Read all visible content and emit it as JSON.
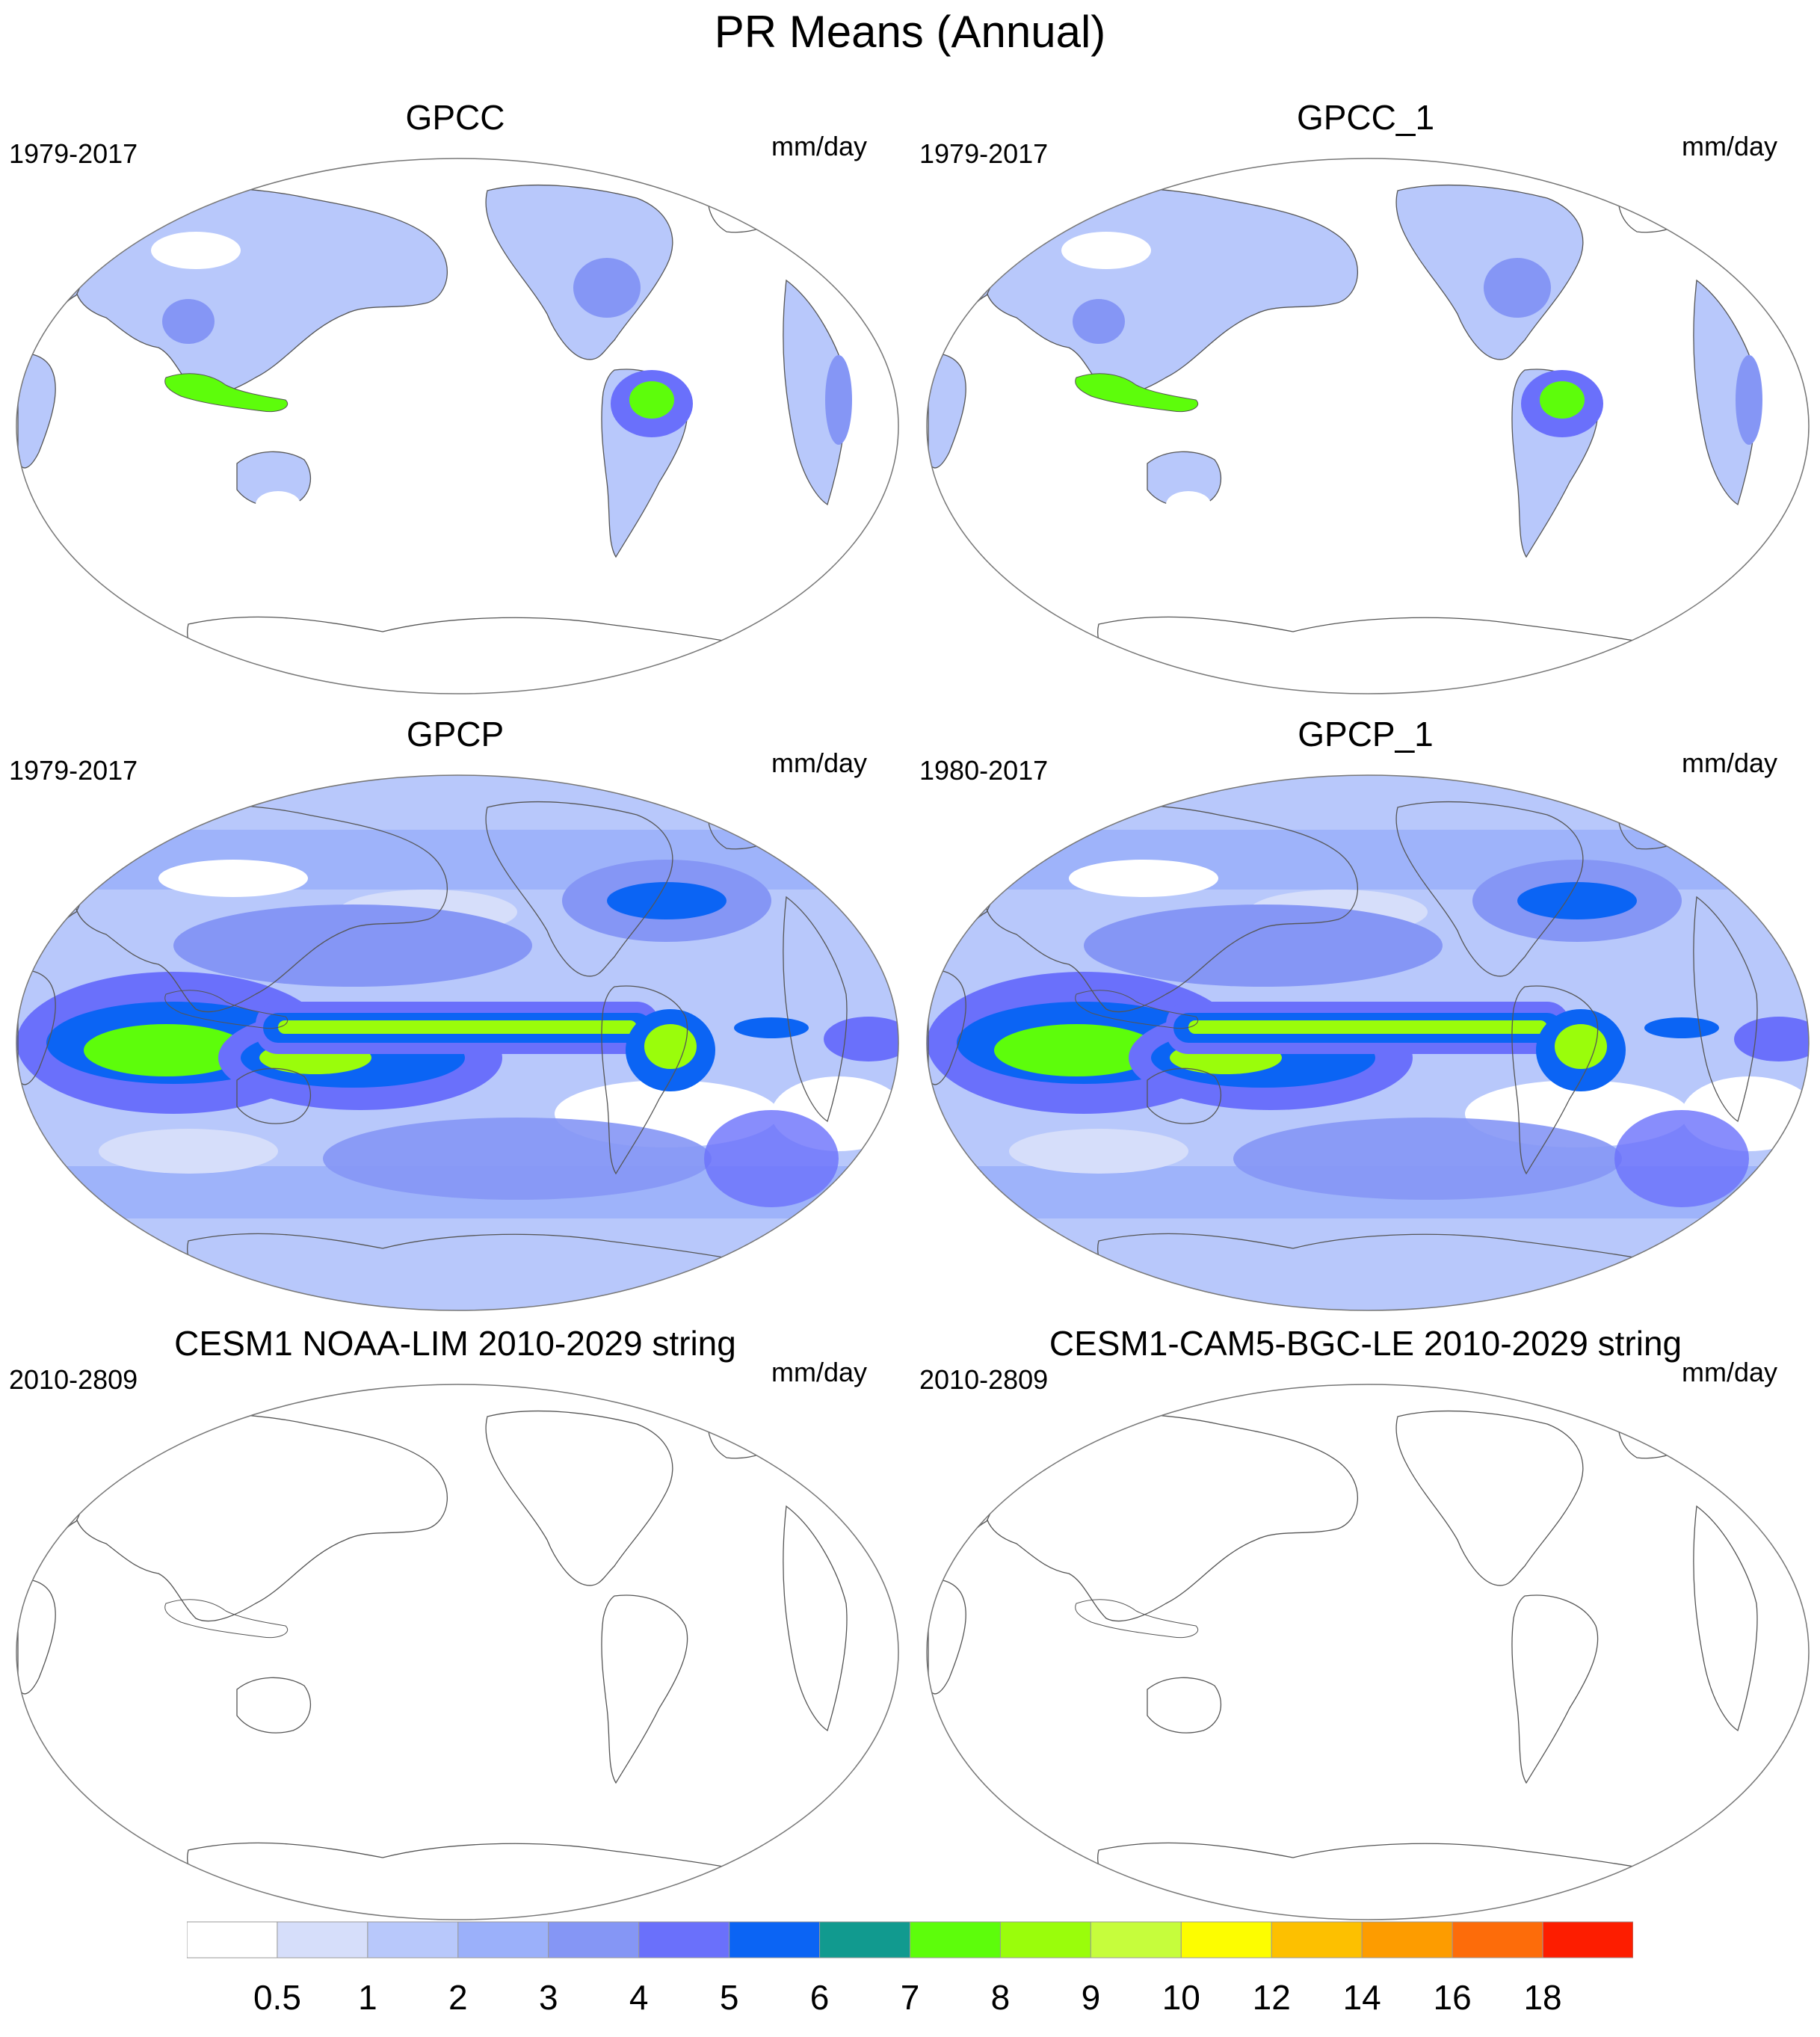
{
  "figure": {
    "title": "PR Means (Annual)"
  },
  "panels": [
    {
      "title": "GPCC",
      "years": "1979-2017",
      "units": "mm/day",
      "field": "land"
    },
    {
      "title": "GPCC_1",
      "years": "1979-2017",
      "units": "mm/day",
      "field": "land"
    },
    {
      "title": "GPCP",
      "years": "1979-2017",
      "units": "mm/day",
      "field": "global"
    },
    {
      "title": "GPCP_1",
      "years": "1980-2017",
      "units": "mm/day",
      "field": "global"
    },
    {
      "title": "CESM1 NOAA-LIM 2010-2029 string",
      "years": "2010-2809",
      "units": "mm/day",
      "field": "none"
    },
    {
      "title": "CESM1-CAM5-BGC-LE 2010-2029 string",
      "years": "2010-2809",
      "units": "mm/day",
      "field": "none"
    }
  ],
  "colorbar": {
    "labels": [
      "0.5",
      "1",
      "2",
      "3",
      "4",
      "5",
      "6",
      "7",
      "8",
      "9",
      "10",
      "12",
      "14",
      "16",
      "18"
    ],
    "colors": [
      "#ffffff",
      "#d6defa",
      "#b8c8fb",
      "#9bb0fa",
      "#8596f5",
      "#6a70fb",
      "#0b64f4",
      "#119a8f",
      "#5dfd0b",
      "#9afd0b",
      "#c6fd3c",
      "#fdfd00",
      "#fdc000",
      "#fd9c00",
      "#fd6c0a",
      "#fd1d00"
    ]
  }
}
